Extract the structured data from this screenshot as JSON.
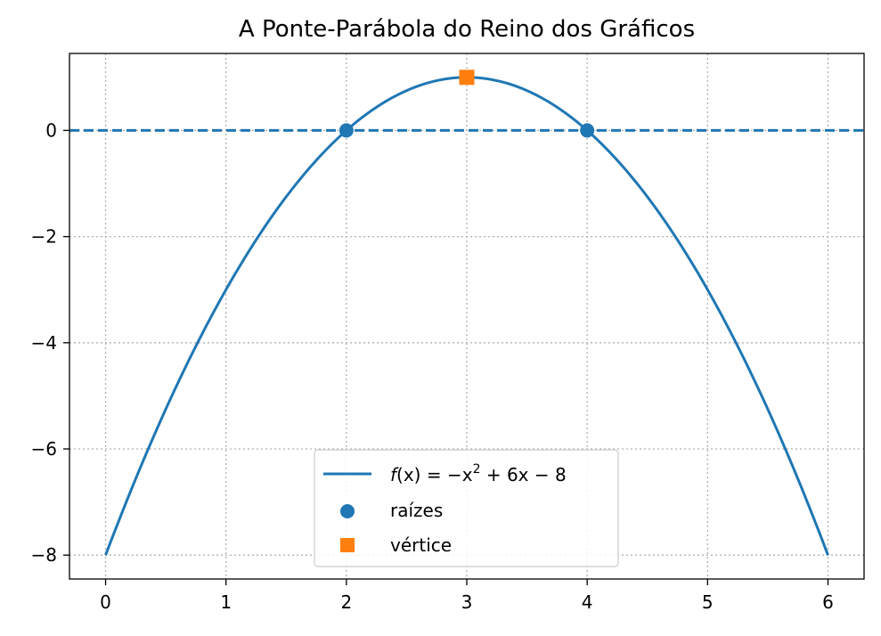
{
  "chart_data": {
    "type": "line",
    "title": "A Ponte-Parábola do Reino dos Gráficos",
    "xlabel": "",
    "ylabel": "",
    "xlim": [
      -0.3,
      6.3
    ],
    "ylim": [
      -8.45,
      1.45
    ],
    "xticks": [
      0,
      1,
      2,
      3,
      4,
      5,
      6
    ],
    "yticks": [
      0,
      -2,
      -4,
      -6,
      -8
    ],
    "xtick_labels": [
      "0",
      "1",
      "2",
      "3",
      "4",
      "5",
      "6"
    ],
    "ytick_labels": [
      "0",
      "−2",
      "−4",
      "−6",
      "−8"
    ],
    "grid": true,
    "legend_position": "lower-center",
    "colors": {
      "curve": "#1f77b4",
      "roots": "#1f77b4",
      "vertex": "#ff7f0e",
      "baseline": "#1f77b4",
      "grid": "#b0b0b0"
    },
    "series": [
      {
        "kind": "line",
        "name": "f(x) = −x² + 6x − 8",
        "function": {
          "a": -1,
          "b": 6,
          "c": -8
        },
        "x_range": [
          0,
          6
        ]
      },
      {
        "kind": "scatter",
        "name": "raízes",
        "marker": "circle",
        "x": [
          2,
          4
        ],
        "y": [
          0,
          0
        ]
      },
      {
        "kind": "scatter",
        "name": "vértice",
        "marker": "square",
        "x": [
          3
        ],
        "y": [
          1
        ]
      }
    ],
    "reference_lines": [
      {
        "axis": "y",
        "value": 0,
        "style": "dashed"
      }
    ],
    "legend": {
      "curve_label_prefix": "f",
      "curve_label_mid": "(x) = −x",
      "curve_label_exp": "2",
      "curve_label_suffix": " + 6x − 8",
      "roots_label": "raízes",
      "vertex_label": "vértice"
    }
  }
}
